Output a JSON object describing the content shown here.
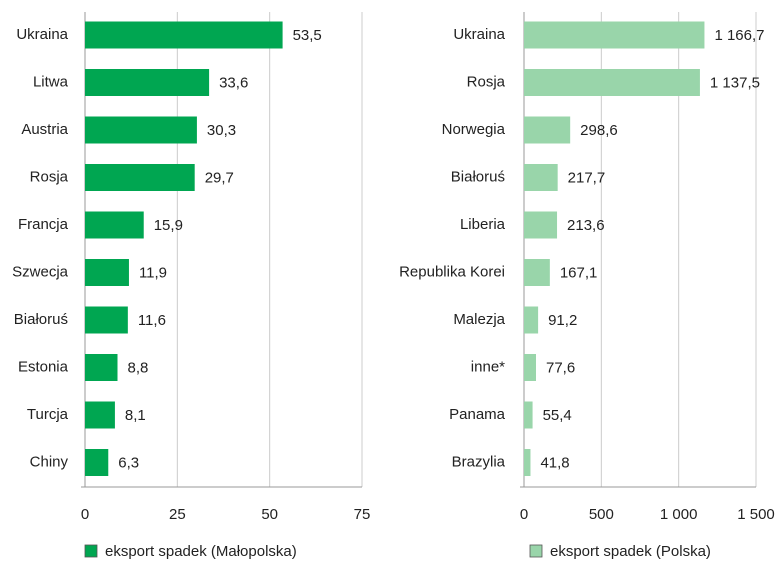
{
  "chart_data": [
    {
      "type": "bar",
      "orientation": "horizontal",
      "categories": [
        "Ukraina",
        "Litwa",
        "Austria",
        "Rosja",
        "Francja",
        "Szwecja",
        "Białoruś",
        "Estonia",
        "Turcja",
        "Chiny"
      ],
      "series": [
        {
          "name": "eksport spadek (Małopolska)",
          "color": "#00a651",
          "values": [
            53.5,
            33.6,
            30.3,
            29.7,
            15.9,
            11.9,
            11.6,
            8.8,
            8.1,
            6.3
          ],
          "value_labels": [
            "53,5",
            "33,6",
            "30,3",
            "29,7",
            "15,9",
            "11,9",
            "11,6",
            "8,8",
            "8,1",
            "6,3"
          ]
        }
      ],
      "xlim": [
        0,
        75
      ],
      "xticks": [
        0,
        25,
        50,
        75
      ],
      "grid": true
    },
    {
      "type": "bar",
      "orientation": "horizontal",
      "categories": [
        "Ukraina",
        "Rosja",
        "Norwegia",
        "Białoruś",
        "Liberia",
        "Republika Korei",
        "Malezja",
        "inne*",
        "Panama",
        "Brazylia"
      ],
      "series": [
        {
          "name": "eksport spadek (Polska)",
          "color": "#99d5aa",
          "values": [
            1166.7,
            1137.5,
            298.6,
            217.7,
            213.6,
            167.1,
            91.2,
            77.6,
            55.4,
            41.8
          ],
          "value_labels": [
            "1 166,7",
            "1 137,5",
            "298,6",
            "217,7",
            "213,6",
            "167,1",
            "91,2",
            "77,6",
            "55,4",
            "41,8"
          ]
        }
      ],
      "xlim": [
        0,
        1500
      ],
      "xticks": [
        0,
        500,
        {
          "value": 1000,
          "label": "1 000"
        },
        {
          "value": 1500,
          "label": "1 500"
        }
      ],
      "grid": true
    }
  ]
}
